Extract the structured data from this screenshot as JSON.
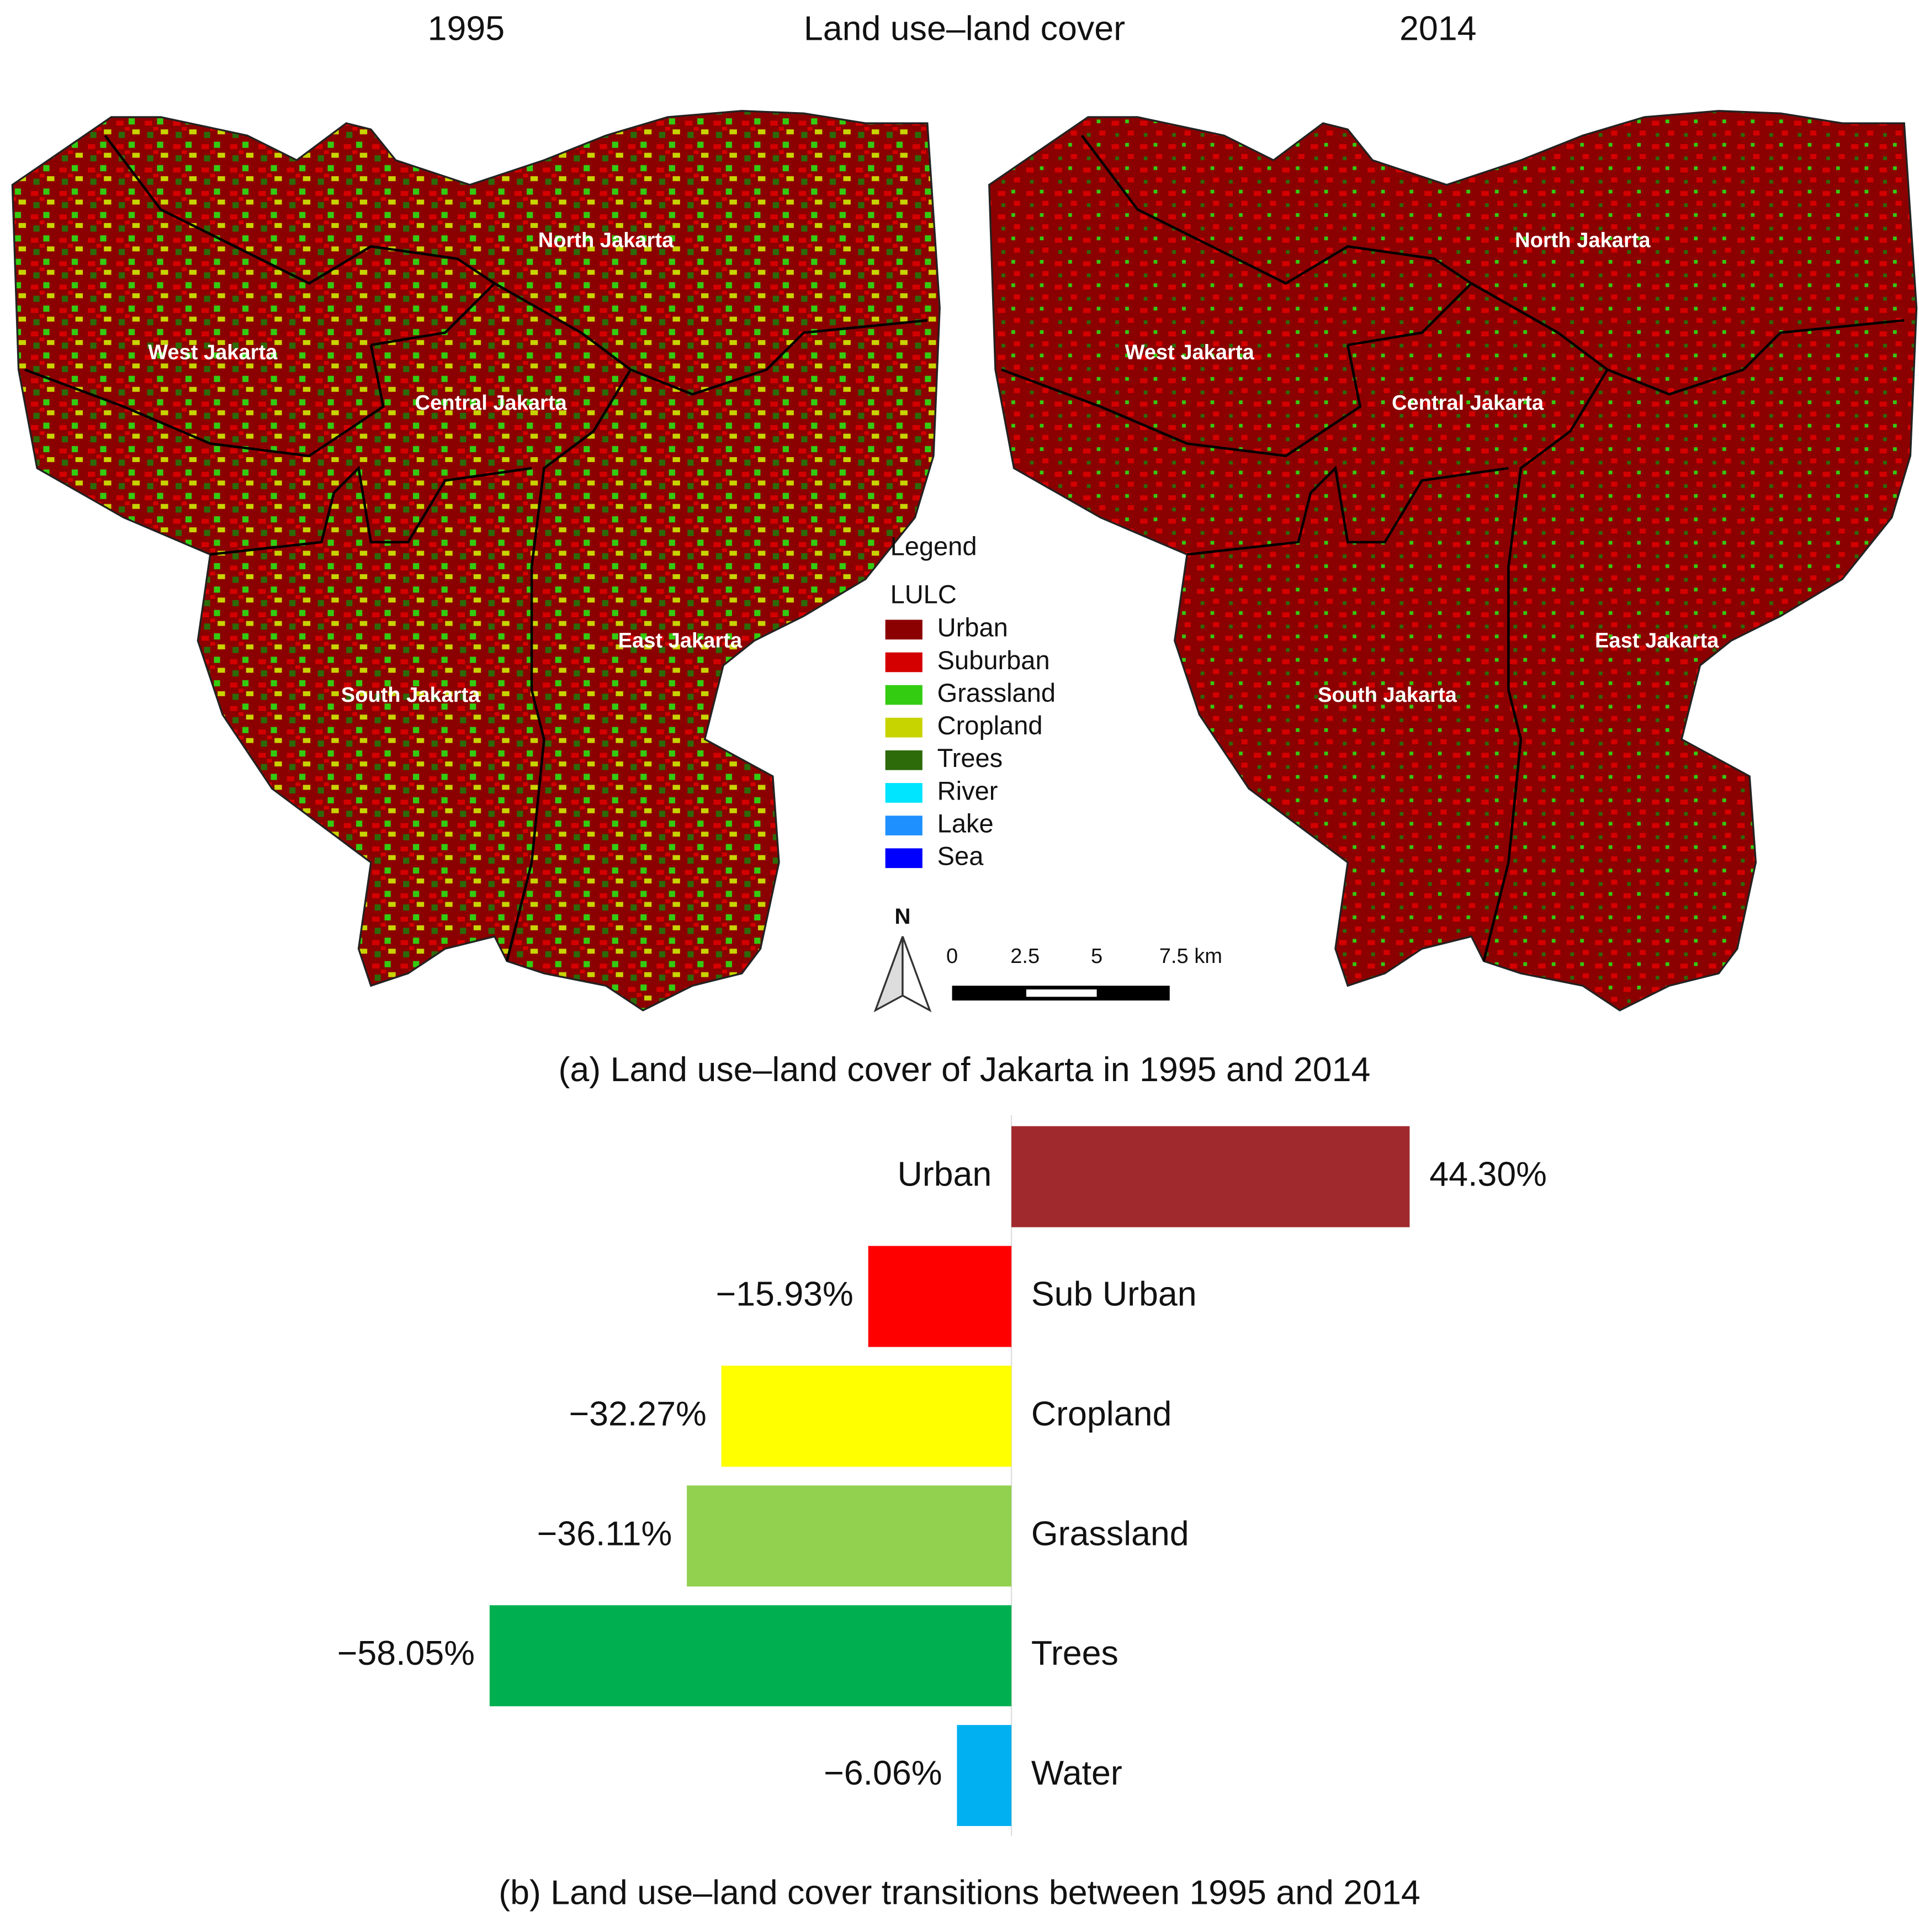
{
  "header": {
    "year_left": "1995",
    "title": "Land use–land cover",
    "year_right": "2014"
  },
  "map": {
    "districts": [
      "North Jakarta",
      "West Jakarta",
      "Central Jakarta",
      "East Jakarta",
      "South Jakarta"
    ],
    "legend": {
      "title": "Legend",
      "subtitle": "LULC",
      "items": [
        {
          "label": "Urban",
          "color": "#8b0000"
        },
        {
          "label": "Suburban",
          "color": "#d40000"
        },
        {
          "label": "Grassland",
          "color": "#33cc11"
        },
        {
          "label": "Cropland",
          "color": "#c8d400"
        },
        {
          "label": "Trees",
          "color": "#2d6a0a"
        },
        {
          "label": "River",
          "color": "#00e5ff"
        },
        {
          "label": "Lake",
          "color": "#1e90ff"
        },
        {
          "label": "Sea",
          "color": "#0000ff"
        }
      ]
    },
    "north": "N",
    "scale_labels": [
      "0",
      "2.5",
      "5",
      "7.5 km"
    ],
    "caption": "(a) Land use–land cover of Jakarta in 1995 and 2014"
  },
  "chart_data": {
    "type": "bar",
    "orientation": "horizontal",
    "categories": [
      "Urban",
      "Sub Urban",
      "Cropland",
      "Grassland",
      "Trees",
      "Water"
    ],
    "values": [
      44.3,
      -15.93,
      -32.27,
      -36.11,
      -58.05,
      -6.06
    ],
    "value_labels": [
      "44.30%",
      "−15.93%",
      "−32.27%",
      "−36.11%",
      "−58.05%",
      "−6.06%"
    ],
    "colors": [
      "#a0292d",
      "#ff0000",
      "#ffff00",
      "#92d050",
      "#00b050",
      "#00b0f0"
    ],
    "caption": "(b) Land use–land cover transitions between 1995 and 2014"
  }
}
